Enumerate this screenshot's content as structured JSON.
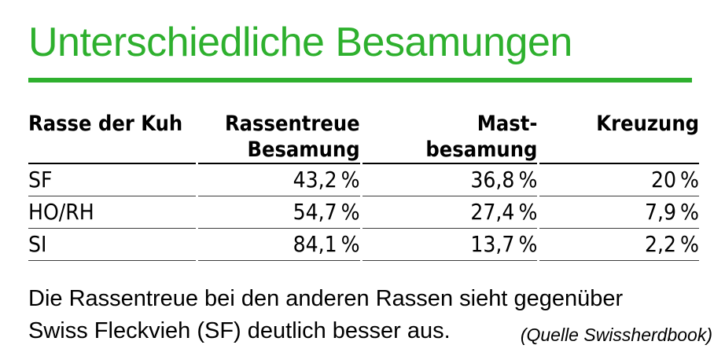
{
  "title": "Unterschiedliche Besamungen",
  "accent_color": "#2eb02e",
  "table": {
    "headers": [
      {
        "lines": [
          "Rasse der Kuh"
        ]
      },
      {
        "lines": [
          "Rassentreue",
          "Besamung"
        ]
      },
      {
        "lines": [
          "Mast-",
          "besamung"
        ]
      },
      {
        "lines": [
          "Kreuzung"
        ]
      }
    ],
    "rows": [
      [
        "SF",
        "43,2 %",
        "36,8 %",
        "20 %"
      ],
      [
        "HO/RH",
        "54,7 %",
        "27,4 %",
        "7,9 %"
      ],
      [
        "SI",
        "84,1 %",
        "13,7 %",
        "2,2 %"
      ]
    ]
  },
  "caption": {
    "lines": [
      "Die Rassentreue bei den anderen Rassen sieht gegenüber",
      "Swiss Fleckvieh (SF) deutlich besser aus."
    ],
    "source": "(Quelle Swissherdbook)"
  },
  "chart_data": {
    "type": "table",
    "title": "Unterschiedliche Besamungen",
    "columns": [
      "Rasse der Kuh",
      "Rassentreue Besamung",
      "Mastbesamung",
      "Kreuzung"
    ],
    "unit": "%",
    "rows": [
      {
        "rasse": "SF",
        "rassentreue_besamung": 43.2,
        "mastbesamung": 36.8,
        "kreuzung": 20
      },
      {
        "rasse": "HO/RH",
        "rassentreue_besamung": 54.7,
        "mastbesamung": 27.4,
        "kreuzung": 7.9
      },
      {
        "rasse": "SI",
        "rassentreue_besamung": 84.1,
        "mastbesamung": 13.7,
        "kreuzung": 2.2
      }
    ],
    "note": "Die Rassentreue bei den anderen Rassen sieht gegenüber Swiss Fleckvieh (SF) deutlich besser aus.",
    "source": "(Quelle Swissherdbook)"
  }
}
